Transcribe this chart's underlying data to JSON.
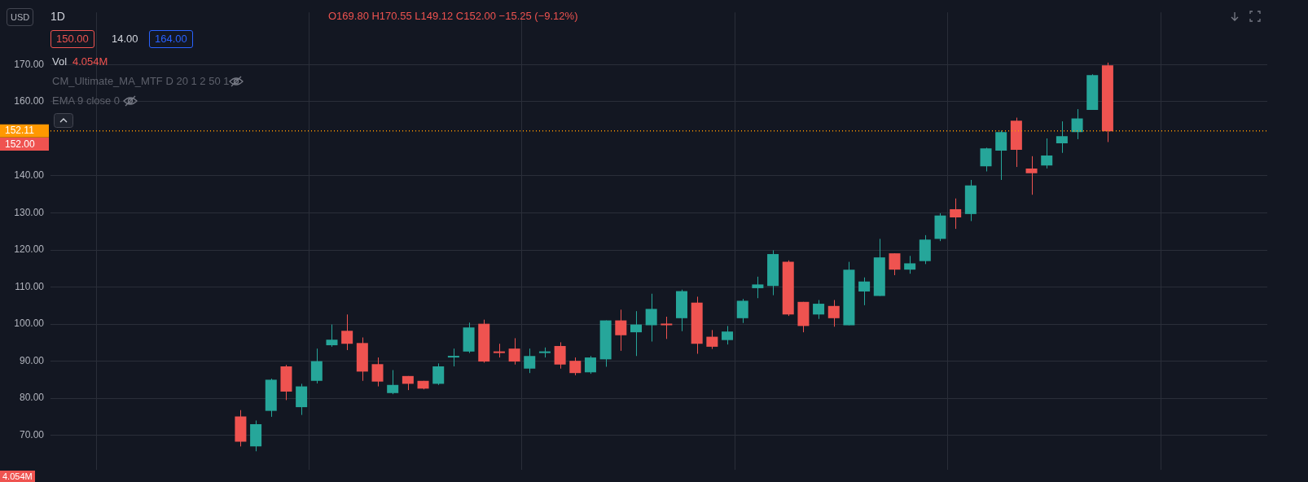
{
  "chart_data": {
    "type": "candlestick",
    "title": "1D",
    "categories": [
      null,
      null,
      null,
      null,
      null,
      null,
      null,
      null,
      null,
      null,
      null,
      null,
      null,
      null,
      null,
      null,
      null,
      null,
      null,
      null,
      null,
      null,
      null,
      null,
      null,
      null,
      null,
      null,
      null,
      null,
      null,
      null,
      null,
      null,
      null,
      null,
      null,
      null,
      null,
      null,
      null,
      null,
      null,
      null,
      null,
      null,
      null,
      null,
      null,
      null,
      null,
      null,
      null,
      null,
      null,
      null,
      null,
      null,
      null,
      null,
      null,
      null,
      null,
      null,
      null,
      null,
      null,
      null,
      null,
      null,
      null,
      null,
      null,
      null,
      null,
      null,
      null,
      null,
      null,
      null
    ],
    "ohlc": [
      null,
      null,
      null,
      null,
      null,
      null,
      null,
      null,
      null,
      null,
      null,
      null,
      [
        75.1,
        76.8,
        67.0,
        68.3
      ],
      [
        67.0,
        74.0,
        65.7,
        73.0
      ],
      [
        76.6,
        85.3,
        75.0,
        85.0
      ],
      [
        88.6,
        89.0,
        79.5,
        81.8
      ],
      [
        77.6,
        83.9,
        75.5,
        83.2
      ],
      [
        84.7,
        93.4,
        84.0,
        90.0
      ],
      [
        94.3,
        99.9,
        93.9,
        95.8
      ],
      [
        98.2,
        102.6,
        93.0,
        94.7
      ],
      [
        94.9,
        96.4,
        84.7,
        87.2
      ],
      [
        89.2,
        91.0,
        83.2,
        84.5
      ],
      [
        81.4,
        87.6,
        81.1,
        83.6
      ],
      [
        86.0,
        86.0,
        82.2,
        83.9
      ],
      [
        84.7,
        84.7,
        82.4,
        82.6
      ],
      [
        83.9,
        89.4,
        83.6,
        88.6
      ],
      [
        91.0,
        93.4,
        88.6,
        91.4
      ],
      [
        92.6,
        100.4,
        92.2,
        99.1
      ],
      [
        100.1,
        101.2,
        89.6,
        89.9
      ],
      [
        92.4,
        94.7,
        91.0,
        92.2
      ],
      [
        93.4,
        96.2,
        89.1,
        89.9
      ],
      [
        88.0,
        93.4,
        86.8,
        91.4
      ],
      [
        92.2,
        93.7,
        91.0,
        92.6
      ],
      [
        94.1,
        95.1,
        88.0,
        89.1
      ],
      [
        90.1,
        91.0,
        86.2,
        86.8
      ],
      [
        87.0,
        91.4,
        86.6,
        91.0
      ],
      [
        90.5,
        101.0,
        88.5,
        101.0
      ],
      [
        101.0,
        103.9,
        92.8,
        97.0
      ],
      [
        97.8,
        103.5,
        91.4,
        99.9
      ],
      [
        99.7,
        108.2,
        95.3,
        104.1
      ],
      [
        99.9,
        102.0,
        96.0,
        99.7
      ],
      [
        101.6,
        109.3,
        98.1,
        108.9
      ],
      [
        105.8,
        107.4,
        92.0,
        94.7
      ],
      [
        96.6,
        98.4,
        93.3,
        93.9
      ],
      [
        95.7,
        99.5,
        94.5,
        98.0
      ],
      [
        101.6,
        106.8,
        100.3,
        106.3
      ],
      [
        109.7,
        112.8,
        107.0,
        110.7
      ],
      [
        110.3,
        119.9,
        107.8,
        118.9
      ],
      [
        116.8,
        117.2,
        102.2,
        102.6
      ],
      [
        106.0,
        106.0,
        97.8,
        99.5
      ],
      [
        102.6,
        106.5,
        101.4,
        105.5
      ],
      [
        104.9,
        106.5,
        99.3,
        101.6
      ],
      [
        99.7,
        116.8,
        99.7,
        114.7
      ],
      [
        108.8,
        112.6,
        105.1,
        111.5
      ],
      [
        107.6,
        123.0,
        107.6,
        118.0
      ],
      [
        119.1,
        119.1,
        113.2,
        114.7
      ],
      [
        114.7,
        118.4,
        113.6,
        116.4
      ],
      [
        117.0,
        124.0,
        116.2,
        122.8
      ],
      [
        123.0,
        129.9,
        122.4,
        129.3
      ],
      [
        131.0,
        133.9,
        125.7,
        128.8
      ],
      [
        129.7,
        138.9,
        127.8,
        137.4
      ],
      [
        142.6,
        147.6,
        141.2,
        147.4
      ],
      [
        146.8,
        152.2,
        138.9,
        151.8
      ],
      [
        154.9,
        155.7,
        142.4,
        147.0
      ],
      [
        142.0,
        145.3,
        134.9,
        140.7
      ],
      [
        142.8,
        150.1,
        142.0,
        145.5
      ],
      [
        148.8,
        154.7,
        146.2,
        150.7
      ],
      [
        151.8,
        158.0,
        149.9,
        155.5
      ],
      [
        157.8,
        167.4,
        157.8,
        167.2
      ],
      [
        169.8,
        170.55,
        149.12,
        152.0
      ],
      null,
      null,
      null,
      null,
      null,
      null,
      null,
      null,
      null,
      null
    ],
    "colors": [
      null,
      null,
      null,
      null,
      null,
      null,
      null,
      null,
      null,
      null,
      null,
      null,
      "#ef5350",
      "#26a69a",
      "#26a69a",
      "#ef5350",
      "#26a69a",
      "#26a69a",
      "#26a69a",
      "#ef5350",
      "#ef5350",
      "#ef5350",
      "#26a69a",
      "#ef5350",
      "#ef5350",
      "#26a69a",
      "#26a69a",
      "#26a69a",
      "#ef5350",
      "#ef5350",
      "#ef5350",
      "#26a69a",
      "#26a69a",
      "#ef5350",
      "#ef5350",
      "#26a69a",
      "#26a69a",
      "#ef5350",
      "#26a69a",
      "#26a69a",
      "#ef5350",
      "#26a69a",
      "#ef5350",
      "#ef5350",
      "#26a69a",
      "#26a69a",
      "#26a69a",
      "#26a69a",
      "#ef5350",
      "#ef5350",
      "#26a69a",
      "#ef5350",
      "#26a69a",
      "#26a69a",
      "#26a69a",
      "#ef5350",
      "#26a69a",
      "#26a69a",
      "#26a69a",
      "#ef5350",
      "#26a69a",
      "#26a69a",
      "#26a69a",
      "#ef5350",
      "#ef5350",
      "#26a69a",
      "#26a69a",
      "#26a69a",
      "#26a69a",
      "#ef5350",
      null,
      null,
      null,
      null,
      null,
      null,
      null,
      null,
      null,
      null
    ],
    "ylim": [
      60.75,
      184.1
    ],
    "yticks": [
      {
        "value": 70,
        "label": "70.00"
      },
      {
        "value": 80,
        "label": "80.00"
      },
      {
        "value": 90,
        "label": "90.00"
      },
      {
        "value": 100,
        "label": "100.00"
      },
      {
        "value": 110,
        "label": "110.00"
      },
      {
        "value": 120,
        "label": "120.00"
      },
      {
        "value": 130,
        "label": "130.00"
      },
      {
        "value": 140,
        "label": "140.00"
      },
      {
        "value": 160,
        "label": "160.00"
      },
      {
        "value": 170,
        "label": "170.00"
      }
    ],
    "tick_labels": "y",
    "grid": true,
    "ref_lines": [
      {
        "axis": "y",
        "value": 152.11,
        "label": "152.11",
        "color": "#ff9800",
        "line_style": "dotted"
      }
    ],
    "annotations": [
      "USD",
      "O169.80 H170.55 L149.12 C152.00 −15.25 (−9.12%)",
      "150.00",
      "14.00",
      "164.00",
      "Vol",
      "4.054M",
      "CM_Ultimate_MA_MTF D 20 1 2 50 1",
      "EMA 9 close 0",
      "4.054M",
      "152.00"
    ]
  }
}
